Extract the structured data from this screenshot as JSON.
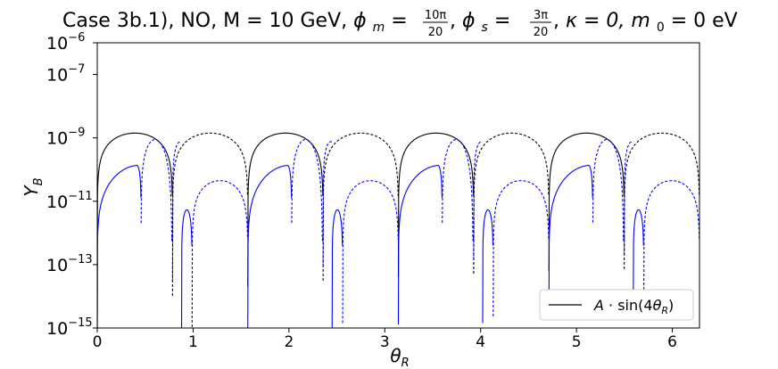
{
  "chart_data": {
    "type": "line",
    "title": {
      "prefix": "Case 3b.1), NO, M = 10 GeV, ",
      "phi_m_label": "ϕ",
      "phi_m_sub": "m",
      "phi_m_num": "10π",
      "phi_m_den": "20",
      "phi_s_label": "ϕ",
      "phi_s_sub": "s",
      "phi_s_num": "3π",
      "phi_s_den": "20",
      "kappa_text": "κ = 0, ",
      "m0_label": "m",
      "m0_sub": "0",
      "m0_value": " = 0 eV"
    },
    "xlabel": {
      "main": "θ",
      "sub": "R"
    },
    "ylabel": {
      "main": "Y",
      "sub": "B"
    },
    "xlim": [
      0,
      6.2832
    ],
    "ylim_log10": [
      -15,
      -6
    ],
    "log_scale_y": true,
    "x_ticks": [
      "0",
      "1",
      "2",
      "3",
      "4",
      "5",
      "6"
    ],
    "y_ticks": [
      {
        "base": "10",
        "exp": "−6",
        "value": -6
      },
      {
        "base": "10",
        "exp": "−7",
        "value": -7
      },
      {
        "base": "10",
        "exp": "−9",
        "value": -9
      },
      {
        "base": "10",
        "exp": "−11",
        "value": -11
      },
      {
        "base": "10",
        "exp": "−13",
        "value": -13
      },
      {
        "base": "10",
        "exp": "−15",
        "value": -15
      }
    ],
    "legend": {
      "position": "bottom-right",
      "entries": [
        {
          "label_prefix": "A · sin(4",
          "label_var": "θ",
          "label_sub": "R",
          "label_suffix": ")",
          "color": "#000000",
          "style": "solid"
        }
      ]
    },
    "series": [
      {
        "function": "A*sin(4*theta_R)",
        "amplitude_log10": -8.85,
        "color": "#000000",
        "solid_when": "positive",
        "dashed_when": "negative"
      },
      {
        "function": "blue curve",
        "amplitude_log10": -9.05,
        "color": "#0000ff",
        "solid_when": "positive",
        "dashed_when": "negative",
        "peaks_log10": [
          -9.9,
          -8.85
        ],
        "dip_log10": -10.6,
        "secondary_peak_log10": -11.35
      }
    ]
  }
}
